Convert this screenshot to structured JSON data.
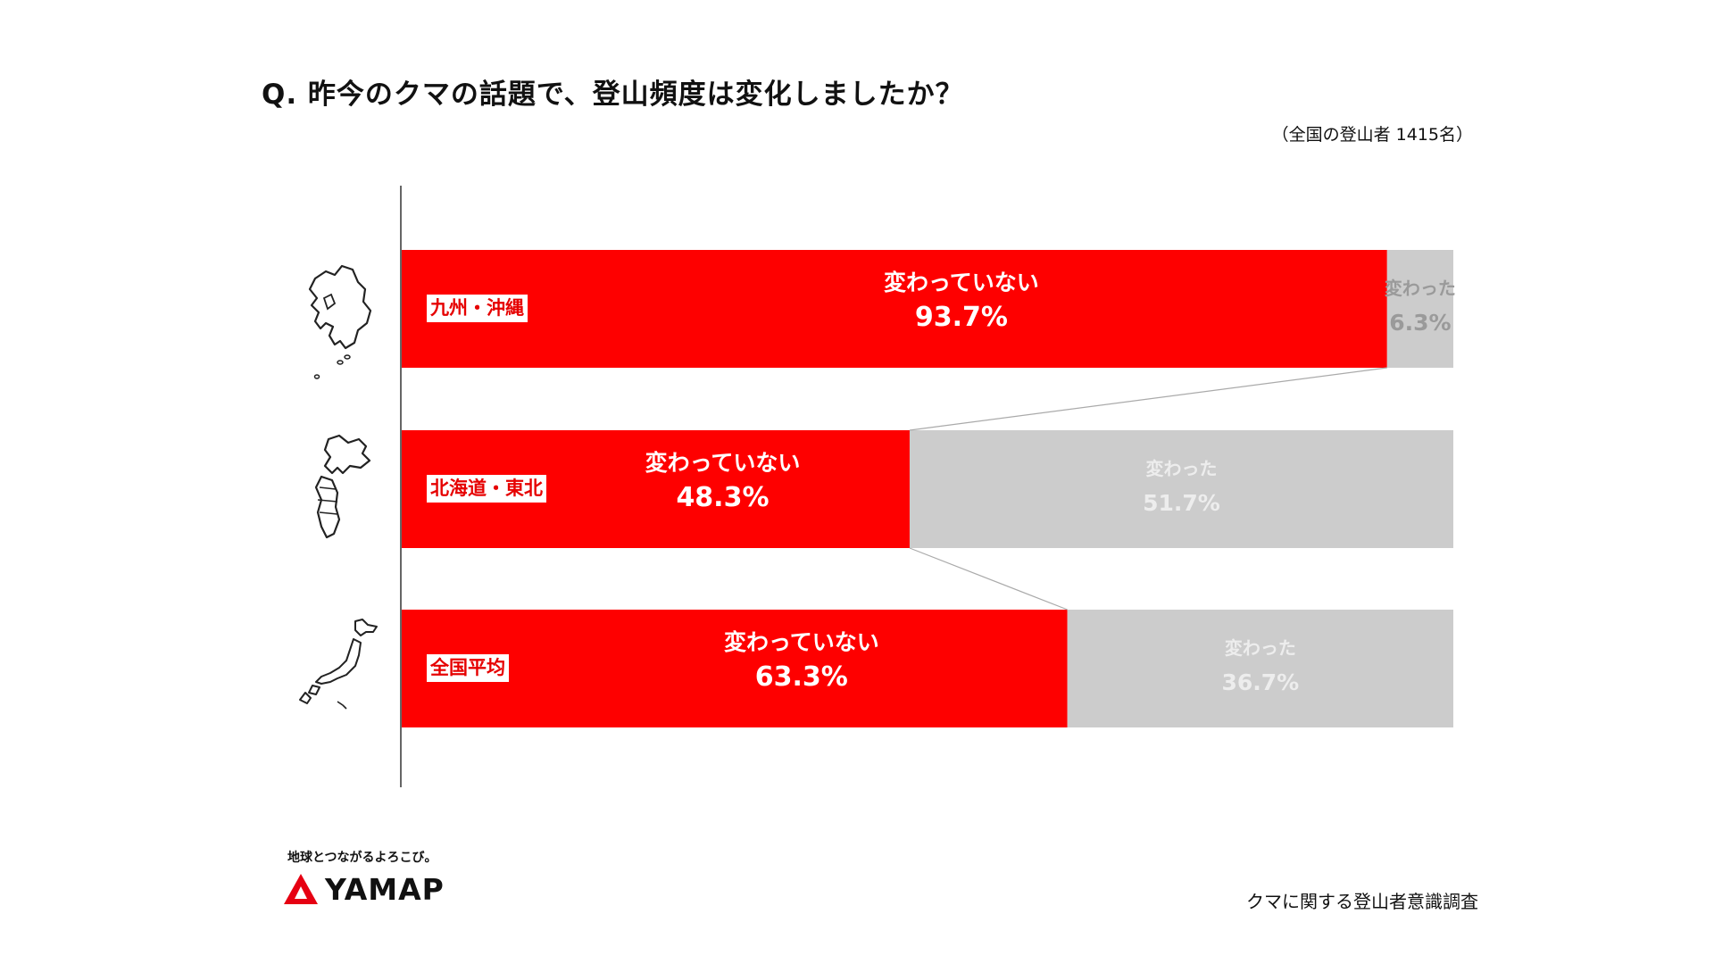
{
  "title": "Q. 昨今のクマの話題で、登山頻度は変化しましたか？",
  "sample_note": "（全国の登山者 1415名）",
  "colors": {
    "unchanged": "#fe0000",
    "changed": "#cccccc",
    "connector": "#aaaaaa",
    "axis": "#333333"
  },
  "chart_data": {
    "type": "bar",
    "orientation": "horizontal",
    "stacked": true,
    "percent": true,
    "xlim": [
      0,
      100
    ],
    "categories": [
      "九州・沖縄",
      "北海道・東北",
      "全国平均"
    ],
    "series": [
      {
        "name": "変わっていない",
        "values": [
          93.7,
          48.3,
          63.3
        ],
        "labels": [
          "93.7%",
          "48.3%",
          "63.3%"
        ]
      },
      {
        "name": "変わった",
        "values": [
          6.3,
          51.7,
          36.7
        ],
        "labels": [
          "6.3%",
          "51.7%",
          "36.7%"
        ]
      }
    ]
  },
  "map_icons": [
    "kyushu-map-icon",
    "hokkaido-tohoku-map-icon",
    "japan-map-icon"
  ],
  "footer": {
    "tagline": "地球とつながるよろこび。",
    "logo_text": "YAMAP",
    "source": "クマに関する登山者意識調査"
  }
}
